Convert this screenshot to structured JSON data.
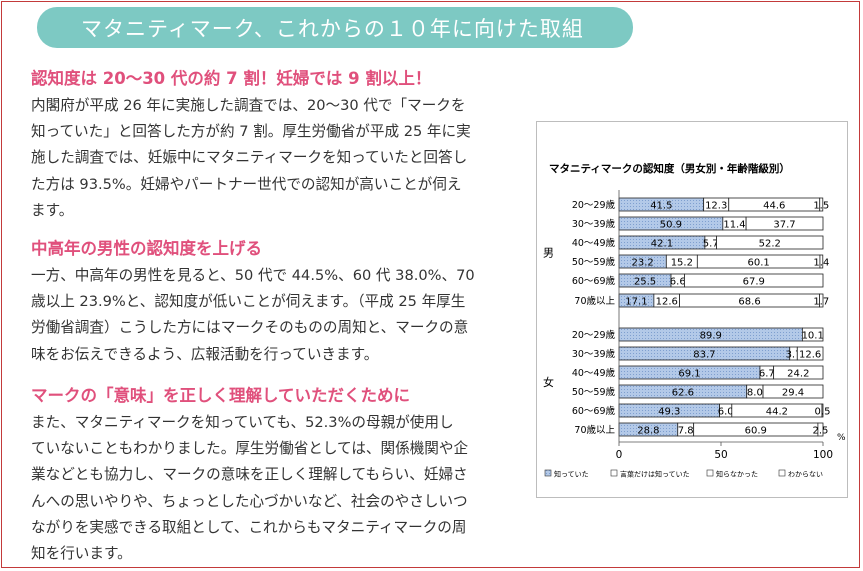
{
  "banner": {
    "title": "マタニティマーク、これからの１０年に向けた取組"
  },
  "sections": [
    {
      "heading": "認知度は 20～30 代の約 7 割！妊婦では 9 割以上！",
      "lines": [
        "内閣府が平成 26 年に実施した調査では、20～30 代で「マークを",
        "知っていた」と回答した方が約 7 割。厚生労働省が平成 25 年に実",
        "施した調査では、妊娠中にマタニティマークを知っていたと回答し",
        "た方は 93.5%。妊婦やパートナー世代での認知が高いことが伺え",
        "ます。"
      ]
    },
    {
      "heading": "中高年の男性の認知度を上げる",
      "lines": [
        "一方、中高年の男性を見ると、50 代で 44.5%、60 代 38.0%、70",
        "歳以上 23.9%と、認知度が低いことが伺えます。（平成 25 年厚生",
        "労働省調査）こうした方にはマークそのものの周知と、マークの意",
        "味をお伝えできるよう、広報活動を行っていきます。"
      ]
    },
    {
      "heading": "マークの「意味」を正しく理解していただくために",
      "lines": [
        "また、マタニティマークを知っていても、52.3%の母親が使用し",
        "ていないこともわかりました。厚生労働省としては、関係機関や企",
        "業などとも協力し、マークの意味を正しく理解してもらい、妊婦さ",
        "んへの思いやりや、ちょっとした心づかいなど、社会のやさしいつ",
        "ながりを実感できる取組として、これからもマタニティマークの周",
        "知を行います。"
      ]
    }
  ],
  "chart_data": {
    "type": "bar",
    "stacked": true,
    "orientation": "horizontal",
    "title": "マタニティマークの認知度（男女別・年齢階級別）",
    "groups": [
      {
        "label": "男",
        "categories": [
          "20～29歳",
          "30～39歳",
          "40～49歳",
          "50～59歳",
          "60～69歳",
          "70歳以上"
        ]
      },
      {
        "label": "女",
        "categories": [
          "20～29歳",
          "30～39歳",
          "40～49歳",
          "50～59歳",
          "60～69歳",
          "70歳以上"
        ]
      }
    ],
    "series": [
      {
        "name": "知っていた",
        "color": "#aac3e6",
        "values": [
          41.5,
          50.9,
          42.1,
          23.2,
          25.5,
          17.1,
          89.9,
          83.7,
          69.1,
          62.6,
          49.3,
          28.8
        ],
        "labels": [
          "41.5",
          "50.9",
          "42.1",
          "23.2",
          "25.5",
          "17.1",
          "89.9",
          "83.7",
          "69.1",
          "62.6",
          "49.3",
          "28.8"
        ]
      },
      {
        "name": "言葉だけは知っていた",
        "color": "#ffffff",
        "values": [
          12.3,
          11.4,
          5.7,
          15.2,
          6.6,
          12.6,
          0,
          3.7,
          6.7,
          8.0,
          6.0,
          7.8
        ],
        "labels": [
          "12.3",
          "11.4",
          "5.7",
          "15.2",
          "6.6",
          "12.6",
          "",
          "3.7",
          "6.7",
          "8.0",
          "6.0",
          "7.8"
        ]
      },
      {
        "name": "知らなかった",
        "color": "#ffffff",
        "values": [
          44.6,
          37.7,
          52.2,
          60.1,
          67.9,
          68.6,
          10.1,
          12.6,
          24.2,
          29.4,
          44.2,
          60.9
        ],
        "labels": [
          "44.6",
          "37.7",
          "52.2",
          "60.1",
          "67.9",
          "68.6",
          "10.1",
          "12.6",
          "24.2",
          "29.4",
          "44.2",
          "60.9"
        ]
      },
      {
        "name": "わからない",
        "color": "#ffffff",
        "values": [
          1.5,
          0,
          0,
          1.4,
          0,
          1.7,
          0,
          0,
          0,
          0,
          0.5,
          2.5
        ],
        "labels": [
          "1.5",
          "",
          "",
          "1.4",
          "",
          "1.7",
          "",
          "",
          "",
          "",
          "0.5",
          "2.5"
        ]
      }
    ],
    "xlim": [
      0,
      100
    ],
    "xticks": [
      "0",
      "50",
      "100"
    ],
    "xunit": "%",
    "legend": "bottom",
    "grid": false
  }
}
